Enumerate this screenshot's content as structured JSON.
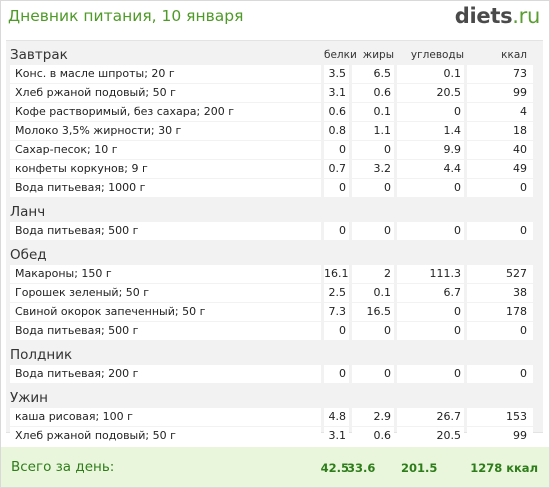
{
  "header": {
    "title": "Дневник питания, 10 января",
    "logo_main": "diets",
    "logo_tld": ".ru"
  },
  "columns": {
    "protein": "белки",
    "fat": "жиры",
    "carbs": "углеводы",
    "kcal": "ккал"
  },
  "meals": [
    {
      "name": "Завтрак",
      "show_columns": true,
      "rows": [
        {
          "name": "Конс. в масле шпроты; 20 г",
          "p": "3.5",
          "f": "6.5",
          "c": "0.1",
          "k": "73"
        },
        {
          "name": "Хлеб ржаной подовый; 50 г",
          "p": "3.1",
          "f": "0.6",
          "c": "20.5",
          "k": "99"
        },
        {
          "name": "Кофе растворимый, без сахара; 200 г",
          "p": "0.6",
          "f": "0.1",
          "c": "0",
          "k": "4"
        },
        {
          "name": "Молоко 3,5% жирности; 30 г",
          "p": "0.8",
          "f": "1.1",
          "c": "1.4",
          "k": "18"
        },
        {
          "name": "Сахар-песок; 10 г",
          "p": "0",
          "f": "0",
          "c": "9.9",
          "k": "40"
        },
        {
          "name": "конфеты коркунов; 9 г",
          "p": "0.7",
          "f": "3.2",
          "c": "4.4",
          "k": "49"
        },
        {
          "name": "Вода питьевая; 1000 г",
          "p": "0",
          "f": "0",
          "c": "0",
          "k": "0"
        }
      ]
    },
    {
      "name": "Ланч",
      "show_columns": false,
      "rows": [
        {
          "name": "Вода питьевая; 500 г",
          "p": "0",
          "f": "0",
          "c": "0",
          "k": "0"
        }
      ]
    },
    {
      "name": "Обед",
      "show_columns": false,
      "rows": [
        {
          "name": "Макароны; 150 г",
          "p": "16.1",
          "f": "2",
          "c": "111.3",
          "k": "527"
        },
        {
          "name": "Горошек зеленый; 50 г",
          "p": "2.5",
          "f": "0.1",
          "c": "6.7",
          "k": "38"
        },
        {
          "name": "Свиной окорок запеченный; 50 г",
          "p": "7.3",
          "f": "16.5",
          "c": "0",
          "k": "178"
        },
        {
          "name": "Вода питьевая; 500 г",
          "p": "0",
          "f": "0",
          "c": "0",
          "k": "0"
        }
      ]
    },
    {
      "name": "Полдник",
      "show_columns": false,
      "rows": [
        {
          "name": "Вода питьевая; 200 г",
          "p": "0",
          "f": "0",
          "c": "0",
          "k": "0"
        }
      ]
    },
    {
      "name": "Ужин",
      "show_columns": false,
      "rows": [
        {
          "name": "каша рисовая; 100 г",
          "p": "4.8",
          "f": "2.9",
          "c": "26.7",
          "k": "153"
        },
        {
          "name": "Хлеб ржаной подовый; 50 г",
          "p": "3.1",
          "f": "0.6",
          "c": "20.5",
          "k": "99"
        }
      ]
    }
  ],
  "totals": {
    "label": "Всего за день:",
    "p": "42.5",
    "f": "33.6",
    "c": "201.5",
    "k": "1278 ккал"
  },
  "colors": {
    "accent_green": "#4e9a26",
    "total_green": "#2e7d1b",
    "footer_bg": "#eaf6dc",
    "table_bg": "#f2f2f2"
  }
}
